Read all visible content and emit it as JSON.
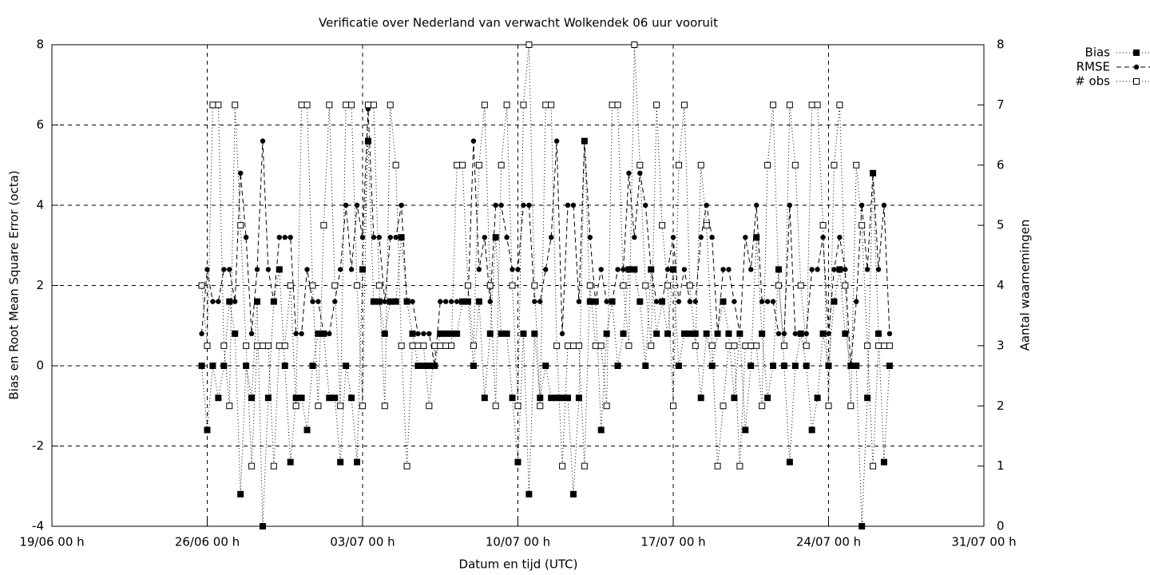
{
  "chart_data": {
    "type": "line",
    "title": "Verificatie over Nederland van verwacht Wolkendek 06 uur vooruit",
    "xlabel": "Datum en tijd (UTC)",
    "ylabel": "Bias en Root Mean Square Error (octa)",
    "y2label": "Aantal waarnemingen",
    "x": [
      "25/06 18 h",
      "26/06 00 h",
      "26/06 06 h",
      "26/06 12 h",
      "26/06 18 h",
      "27/06 00 h",
      "27/06 06 h",
      "27/06 12 h",
      "27/06 18 h",
      "28/06 00 h",
      "28/06 06 h",
      "28/06 12 h",
      "28/06 18 h",
      "29/06 00 h",
      "29/06 06 h",
      "29/06 12 h",
      "29/06 18 h",
      "30/06 00 h",
      "30/06 06 h",
      "30/06 12 h",
      "30/06 18 h",
      "01/07 00 h",
      "01/07 06 h",
      "01/07 12 h",
      "01/07 18 h",
      "02/07 00 h",
      "02/07 06 h",
      "02/07 12 h",
      "02/07 18 h",
      "03/07 00 h",
      "03/07 06 h",
      "03/07 12 h",
      "03/07 18 h",
      "04/07 00 h",
      "04/07 06 h",
      "04/07 12 h",
      "04/07 18 h",
      "05/07 00 h",
      "05/07 06 h",
      "05/07 12 h",
      "05/07 18 h",
      "06/07 00 h",
      "06/07 06 h",
      "06/07 12 h",
      "06/07 18 h",
      "07/07 00 h",
      "07/07 06 h",
      "07/07 12 h",
      "07/07 18 h",
      "08/07 00 h",
      "08/07 06 h",
      "08/07 12 h",
      "08/07 18 h",
      "09/07 00 h",
      "09/07 06 h",
      "09/07 12 h",
      "09/07 18 h",
      "10/07 00 h",
      "10/07 06 h",
      "10/07 12 h",
      "10/07 18 h",
      "11/07 00 h",
      "11/07 06 h",
      "11/07 12 h",
      "11/07 18 h",
      "12/07 00 h",
      "12/07 06 h",
      "12/07 12 h",
      "12/07 18 h",
      "13/07 00 h",
      "13/07 06 h",
      "13/07 12 h",
      "13/07 18 h",
      "14/07 00 h",
      "14/07 06 h",
      "14/07 12 h",
      "14/07 18 h",
      "15/07 00 h",
      "15/07 06 h",
      "15/07 12 h",
      "15/07 18 h",
      "16/07 00 h",
      "16/07 06 h",
      "16/07 12 h",
      "16/07 18 h",
      "17/07 00 h",
      "17/07 06 h",
      "17/07 12 h",
      "17/07 18 h",
      "18/07 00 h",
      "18/07 06 h",
      "18/07 12 h",
      "18/07 18 h",
      "19/07 00 h",
      "19/07 06 h",
      "19/07 12 h",
      "19/07 18 h",
      "20/07 00 h",
      "20/07 06 h",
      "20/07 12 h",
      "20/07 18 h",
      "21/07 00 h",
      "21/07 06 h",
      "21/07 12 h",
      "21/07 18 h",
      "22/07 00 h",
      "22/07 06 h",
      "22/07 12 h",
      "22/07 18 h",
      "23/07 00 h",
      "23/07 06 h",
      "23/07 12 h",
      "23/07 18 h",
      "24/07 00 h",
      "24/07 06 h",
      "24/07 12 h",
      "24/07 18 h",
      "25/07 00 h",
      "25/07 06 h",
      "25/07 12 h",
      "25/07 18 h",
      "26/07 00 h",
      "26/07 06 h",
      "26/07 12 h",
      "26/07 18 h"
    ],
    "series": [
      {
        "name": "Bias",
        "color": "#000000",
        "line": "dotted",
        "marker": "filled-square",
        "values": [
          0,
          -1.6,
          0,
          -0.8,
          0,
          1.6,
          0.8,
          -3.2,
          0,
          -0.8,
          1.6,
          -4,
          -0.8,
          1.6,
          2.4,
          0,
          -2.4,
          -0.8,
          -0.8,
          -1.6,
          0,
          0.8,
          0.8,
          -0.8,
          -0.8,
          -2.4,
          0,
          -0.8,
          -2.4,
          2.4,
          5.6,
          1.6,
          1.6,
          0.8,
          1.6,
          1.6,
          3.2,
          1.6,
          0.8,
          0,
          0,
          0,
          0,
          0.8,
          0.8,
          0.8,
          0.8,
          1.6,
          1.6,
          0,
          1.6,
          -0.8,
          0.8,
          3.2,
          0.8,
          0.8,
          -0.8,
          -2.4,
          0.8,
          -3.2,
          0.8,
          -0.8,
          0,
          -0.8,
          -0.8,
          -0.8,
          -0.8,
          -3.2,
          -0.8,
          5.6,
          1.6,
          1.6,
          -1.6,
          0.8,
          1.6,
          0,
          0.8,
          2.4,
          2.4,
          1.6,
          0,
          2.4,
          0.8,
          1.6,
          0.8,
          2.4,
          0,
          0.8,
          0.8,
          0.8,
          -0.8,
          0.8,
          0,
          0.8,
          1.6,
          0.8,
          -0.8,
          0.8,
          -1.6,
          0,
          3.2,
          0.8,
          -0.8,
          0,
          2.4,
          0,
          -2.4,
          0,
          0.8,
          0,
          -1.6,
          -0.8,
          0.8,
          0,
          1.6,
          2.4,
          0.8,
          0,
          0,
          -4,
          -0.8,
          4.8,
          0.8,
          -2.4,
          0
        ]
      },
      {
        "name": "RMSE",
        "color": "#000000",
        "line": "dashed",
        "marker": "filled-circle",
        "values": [
          0.8,
          2.4,
          1.6,
          1.6,
          2.4,
          2.4,
          1.6,
          4.8,
          3.2,
          0.8,
          2.4,
          5.6,
          2.4,
          1.6,
          3.2,
          3.2,
          3.2,
          0.8,
          0.8,
          2.4,
          1.6,
          1.6,
          0.8,
          0.8,
          1.6,
          2.4,
          4,
          2.4,
          4,
          3.2,
          6.4,
          3.2,
          3.2,
          1.6,
          3.2,
          3.2,
          4,
          1.6,
          1.6,
          0.8,
          0.8,
          0.8,
          0,
          1.6,
          1.6,
          1.6,
          1.6,
          1.6,
          1.6,
          5.6,
          2.4,
          3.2,
          1.6,
          4,
          4,
          3.2,
          2.4,
          2.4,
          4,
          4,
          1.6,
          1.6,
          2.4,
          3.2,
          5.6,
          0.8,
          4,
          4,
          1.6,
          5.6,
          3.2,
          1.6,
          2.4,
          1.6,
          1.6,
          2.4,
          2.4,
          4.8,
          3.2,
          4.8,
          4,
          2.4,
          1.6,
          1.6,
          2.4,
          3.2,
          1.6,
          2.4,
          1.6,
          1.6,
          3.2,
          4,
          3.2,
          0.8,
          2.4,
          2.4,
          1.6,
          0.8,
          3.2,
          2.4,
          4,
          1.6,
          1.6,
          1.6,
          0.8,
          0.8,
          4,
          0.8,
          0.8,
          0.8,
          2.4,
          2.4,
          3.2,
          0.8,
          2.4,
          3.2,
          2.4,
          0,
          1.6,
          4,
          2.4,
          4.8,
          2.4,
          4,
          0.8
        ]
      },
      {
        "name": "# obs",
        "color": "#000000",
        "line": "dotted",
        "marker": "open-square",
        "axis": "y2",
        "values": [
          4,
          3,
          7,
          7,
          3,
          2,
          7,
          5,
          3,
          1,
          3,
          3,
          3,
          1,
          3,
          3,
          4,
          2,
          7,
          7,
          4,
          2,
          5,
          7,
          4,
          2,
          7,
          7,
          4,
          2,
          7,
          7,
          4,
          2,
          7,
          6,
          3,
          1,
          3,
          3,
          3,
          2,
          3,
          3,
          3,
          3,
          6,
          6,
          4,
          3,
          6,
          7,
          4,
          2,
          6,
          7,
          4,
          2,
          7,
          8,
          4,
          2,
          7,
          7,
          3,
          1,
          3,
          3,
          3,
          1,
          4,
          3,
          3,
          2,
          7,
          7,
          4,
          3,
          8,
          6,
          4,
          3,
          7,
          5,
          4,
          2,
          6,
          7,
          4,
          3,
          6,
          5,
          3,
          1,
          2,
          3,
          3,
          1,
          3,
          3,
          3,
          2,
          6,
          7,
          4,
          3,
          7,
          6,
          4,
          3,
          7,
          7,
          5,
          2,
          6,
          7,
          4,
          2,
          6,
          5,
          3,
          1,
          3,
          3,
          3
        ]
      }
    ],
    "xlim": [
      "19/06 00 h",
      "31/07 00 h"
    ],
    "xticks": [
      "19/06 00 h",
      "26/06 00 h",
      "03/07 00 h",
      "10/07 00 h",
      "17/07 00 h",
      "24/07 00 h",
      "31/07 00 h"
    ],
    "ylim": [
      -4,
      8
    ],
    "yticks": [
      -4,
      -2,
      0,
      2,
      4,
      6,
      8
    ],
    "y2lim": [
      0,
      8
    ],
    "y2ticks": [
      0,
      1,
      2,
      3,
      4,
      5,
      6,
      7,
      8
    ],
    "grid": true,
    "legend": "outside-top-right"
  }
}
